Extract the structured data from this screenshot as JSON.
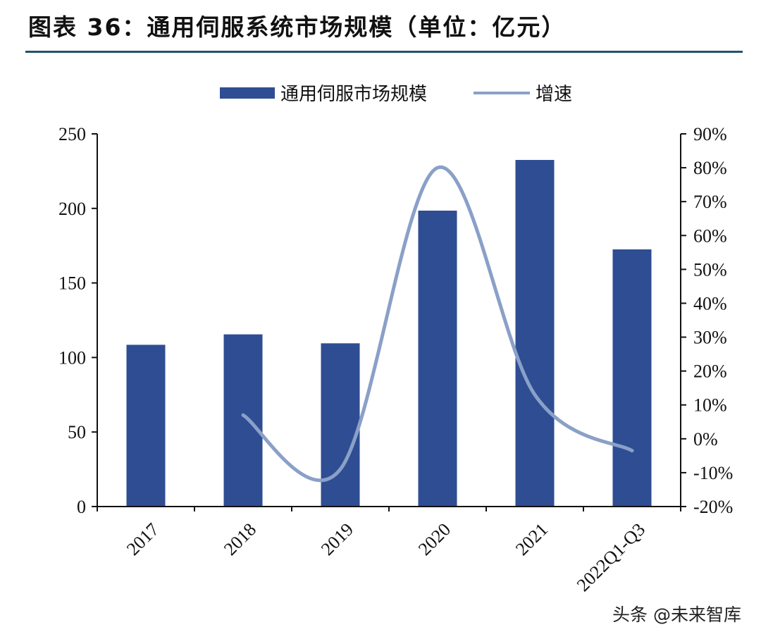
{
  "title": "图表 36：通用伺服系统市场规模（单位：亿元）",
  "watermark": "头条 @未来智库",
  "colors": {
    "bar": "#2e4d93",
    "line": "#8aa0c8",
    "rule": "#24526b"
  },
  "chart_data": {
    "type": "bar",
    "title": "",
    "categories": [
      "2017",
      "2018",
      "2019",
      "2020",
      "2021",
      "2022Q1-Q3"
    ],
    "series": [
      {
        "name": "通用伺服市场规模",
        "type": "bar",
        "axis": "left",
        "values": [
          108.5,
          115.5,
          109.5,
          198.5,
          232.5,
          172.5
        ]
      },
      {
        "name": "增速",
        "type": "line",
        "axis": "right",
        "values": [
          null,
          7,
          -9,
          80,
          13,
          -3.5
        ]
      }
    ],
    "y_left": {
      "min": 0,
      "max": 250,
      "ticks": [
        "0",
        "50",
        "100",
        "150",
        "200",
        "250"
      ]
    },
    "y_right": {
      "min": -20,
      "max": 90,
      "ticks": [
        "-20%",
        "-10%",
        "0%",
        "10%",
        "20%",
        "30%",
        "40%",
        "50%",
        "60%",
        "70%",
        "80%",
        "90%"
      ]
    },
    "legend_position": "top-center",
    "grid": false
  }
}
